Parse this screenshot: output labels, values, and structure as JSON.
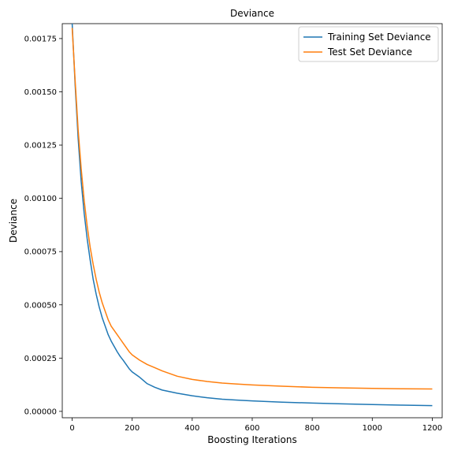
{
  "chart_data": {
    "type": "line",
    "title": "Deviance",
    "xlabel": "Boosting Iterations",
    "ylabel": "Deviance",
    "xlim": [
      -33,
      1233
    ],
    "ylim": [
      -3e-05,
      0.00182
    ],
    "xticks": [
      0,
      200,
      400,
      600,
      800,
      1000,
      1200
    ],
    "xtick_labels": [
      "0",
      "200",
      "400",
      "600",
      "800",
      "1000",
      "1200"
    ],
    "yticks": [
      0,
      0.00025,
      0.0005,
      0.00075,
      0.001,
      0.00125,
      0.0015,
      0.00175
    ],
    "ytick_labels": [
      "0.00000",
      "0.00025",
      "0.00050",
      "0.00075",
      "0.00100",
      "0.00125",
      "0.00150",
      "0.00175"
    ],
    "grid": false,
    "legend": "top-right",
    "series": [
      {
        "name": "Training Set Deviance",
        "color": "#1f77b4",
        "x": [
          0,
          10,
          20,
          30,
          40,
          50,
          60,
          70,
          80,
          90,
          100,
          110,
          120,
          130,
          140,
          150,
          160,
          170,
          180,
          190,
          200,
          225,
          250,
          275,
          300,
          350,
          400,
          450,
          500,
          550,
          600,
          700,
          800,
          900,
          1000,
          1100,
          1200
        ],
        "values": [
          0.00182,
          0.00153,
          0.00128,
          0.00108,
          0.00093,
          0.00081,
          0.00071,
          0.00062,
          0.00055,
          0.00049,
          0.00044,
          0.0004,
          0.00036,
          0.00033,
          0.000305,
          0.00028,
          0.000258,
          0.00024,
          0.00022,
          0.0002,
          0.000185,
          0.00016,
          0.00013,
          0.000113,
          0.0001,
          8.5e-05,
          7.3e-05,
          6.4e-05,
          5.7e-05,
          5.3e-05,
          4.9e-05,
          4.3e-05,
          3.9e-05,
          3.5e-05,
          3.2e-05,
          2.9e-05,
          2.7e-05
        ]
      },
      {
        "name": "Test Set Deviance",
        "color": "#ff7f0e",
        "x": [
          0,
          10,
          20,
          30,
          40,
          50,
          60,
          70,
          80,
          90,
          100,
          110,
          120,
          130,
          140,
          150,
          160,
          170,
          180,
          190,
          200,
          225,
          250,
          275,
          300,
          350,
          400,
          450,
          500,
          550,
          600,
          700,
          800,
          900,
          1000,
          1100,
          1200
        ],
        "values": [
          0.0018,
          0.00155,
          0.00132,
          0.00114,
          0.00099,
          0.00087,
          0.00077,
          0.00069,
          0.00062,
          0.00056,
          0.00051,
          0.00047,
          0.00043,
          0.0004,
          0.00038,
          0.00036,
          0.00034,
          0.00032,
          0.0003,
          0.00028,
          0.000265,
          0.00024,
          0.00022,
          0.000205,
          0.00019,
          0.000165,
          0.00015,
          0.00014,
          0.000133,
          0.000128,
          0.000124,
          0.000118,
          0.000113,
          0.00011,
          0.000108,
          0.000106,
          0.000105
        ]
      }
    ]
  }
}
